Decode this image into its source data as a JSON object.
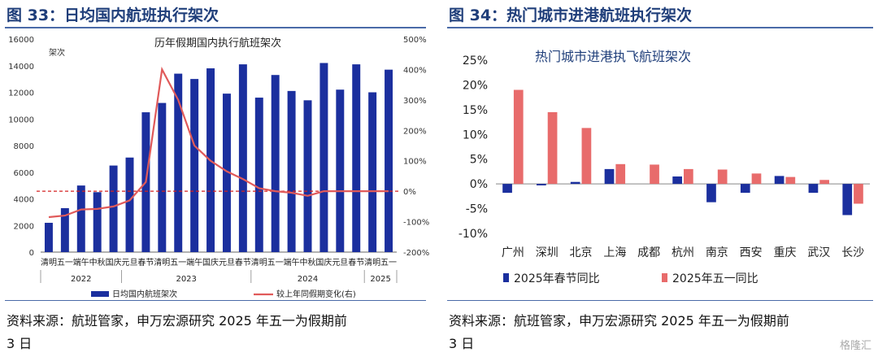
{
  "left": {
    "fig_title": "图 33：日均国内航班执行架次",
    "source_line1": "资料来源：航班管家，申万宏源研究 2025 年五一为假期前",
    "source_line2": "3 日",
    "chart_data": {
      "type": "bar",
      "title": "历年假期国内执行航班架次",
      "ylabel_left": "架次",
      "ylim": [
        0,
        16000
      ],
      "y2lim": [
        -200,
        500
      ],
      "yticks": [
        "0",
        "2000",
        "4000",
        "6000",
        "8000",
        "10000",
        "12000",
        "14000",
        "16000"
      ],
      "y2ticks": [
        "-200%",
        "-100%",
        "0%",
        "100%",
        "200%",
        "300%",
        "400%",
        "500%"
      ],
      "categories": [
        "清明",
        "五一",
        "端午",
        "中秋",
        "国庆",
        "元旦",
        "春节",
        "清明",
        "五一",
        "端午",
        "国庆",
        "元旦",
        "春节",
        "清明",
        "五一",
        "端午",
        "中秋",
        "国庆",
        "元旦",
        "春节",
        "清明",
        "五一"
      ],
      "year_labels": [
        "2022",
        "2023",
        "2024",
        "2025"
      ],
      "series": [
        {
          "name": "日均国内航班架次",
          "type": "bar",
          "color": "#1b2f9e",
          "values": [
            2200,
            3300,
            5000,
            4500,
            6500,
            7100,
            10500,
            11200,
            13400,
            13000,
            13800,
            11900,
            14100,
            11600,
            13300,
            12100,
            11400,
            14200,
            12200,
            14100,
            12000,
            13700
          ]
        },
        {
          "name": "较上年同假期变化(右)",
          "type": "line",
          "color": "#e05a5a",
          "axis": "right",
          "values": [
            -85,
            -80,
            -60,
            -58,
            -50,
            -30,
            30,
            400,
            300,
            150,
            100,
            65,
            40,
            10,
            0,
            -5,
            -15,
            0,
            0,
            0,
            0,
            0
          ]
        }
      ]
    }
  },
  "right": {
    "fig_title": "图 34：热门城市进港航班执行架次",
    "source_line1": "资料来源：航班管家，申万宏源研究 2025 年五一为假期前",
    "source_line2": "3 日",
    "watermark": "格隆汇",
    "chart_data": {
      "type": "bar",
      "title": "热门城市进港执飞航班架次",
      "ylim": [
        -10,
        25
      ],
      "yticks": [
        "-10%",
        "-5%",
        "0%",
        "5%",
        "10%",
        "15%",
        "20%",
        "25%"
      ],
      "categories": [
        "广州",
        "深圳",
        "北京",
        "上海",
        "成都",
        "杭州",
        "南京",
        "西安",
        "重庆",
        "武汉",
        "长沙"
      ],
      "series": [
        {
          "name": "2025年春节同比",
          "color": "#1b2f9e",
          "values": [
            -1.8,
            -0.3,
            0.4,
            3.0,
            0.0,
            1.5,
            -3.7,
            -1.8,
            1.6,
            -1.8,
            -6.3
          ]
        },
        {
          "name": "2025年五一同比",
          "color": "#e86b6b",
          "values": [
            19.0,
            14.5,
            11.3,
            4.0,
            3.9,
            3.0,
            2.9,
            2.1,
            1.4,
            0.8,
            -4.0
          ]
        }
      ]
    }
  }
}
